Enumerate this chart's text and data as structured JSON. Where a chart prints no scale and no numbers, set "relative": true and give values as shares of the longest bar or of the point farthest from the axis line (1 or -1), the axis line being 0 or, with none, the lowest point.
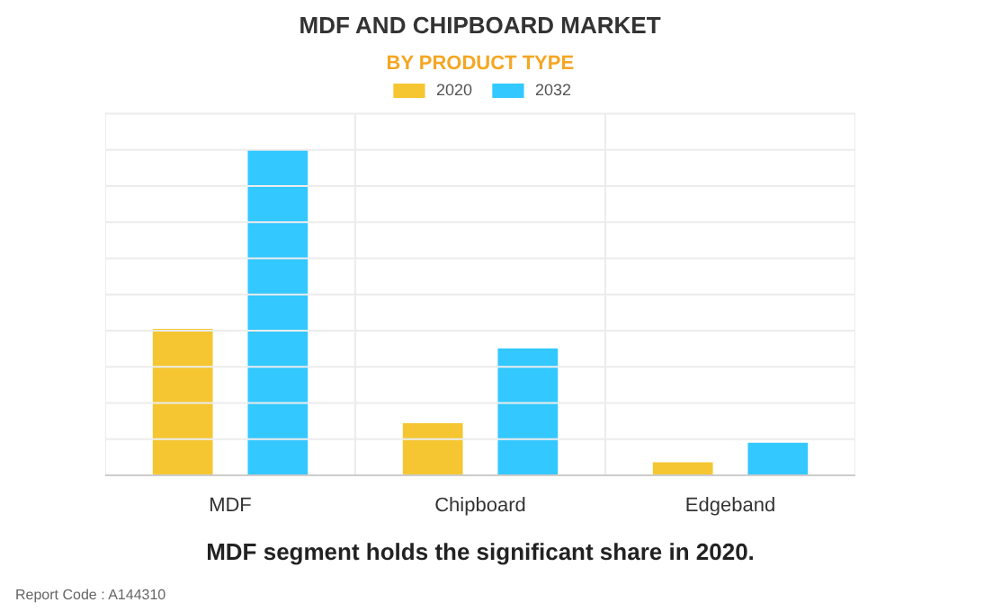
{
  "chart_data": {
    "type": "bar",
    "title": "MDF AND CHIPBOARD MARKET",
    "subtitle": "BY PRODUCT TYPE",
    "categories": [
      "MDF",
      "Chipboard",
      "Edgeband"
    ],
    "relative": true,
    "grid": true,
    "legend": "top",
    "series": [
      {
        "name": "2020",
        "color": "#f5c631",
        "values": [
          0.45,
          0.16,
          0.04
        ]
      },
      {
        "name": "2032",
        "color": "#33c8ff",
        "values": [
          1,
          0.39,
          0.1
        ]
      }
    ],
    "annotations": [
      "MDF segment holds the significant share in 2020.",
      "Report Code : A144310"
    ]
  }
}
